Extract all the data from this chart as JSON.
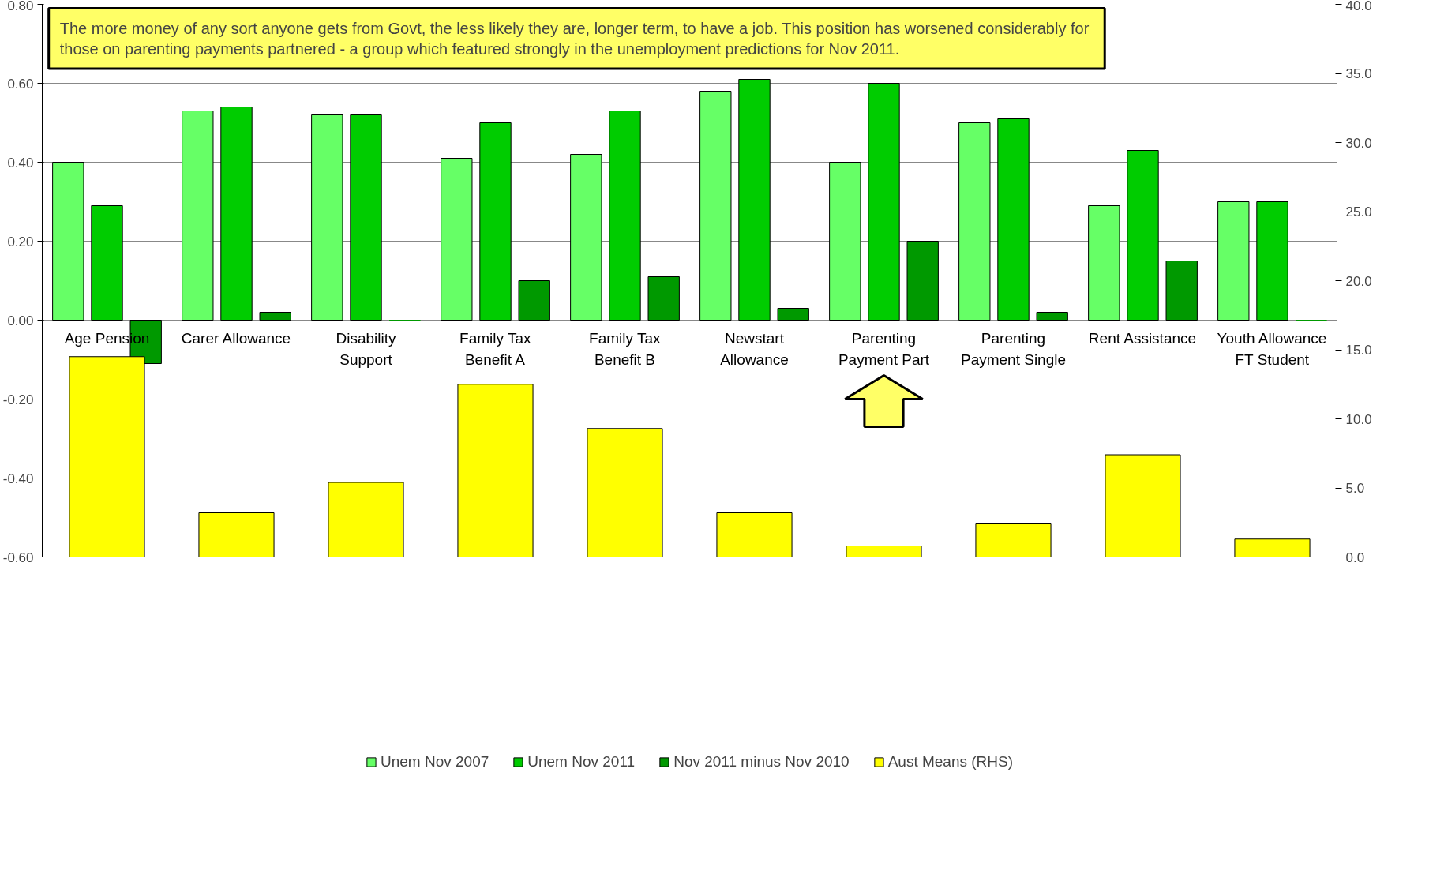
{
  "chart_data": {
    "type": "bar",
    "categories": [
      "Age Pension",
      "Carer Allowance",
      "Disability Support",
      "Family Tax Benefit A",
      "Family Tax Benefit B",
      "Newstart Allowance",
      "Parenting Payment Part",
      "Parenting Payment Single",
      "Rent Assistance",
      "Youth Allowance FT Student"
    ],
    "series": [
      {
        "name": "Unem Nov 2007",
        "color": "#66ff66",
        "values": [
          0.4,
          0.53,
          0.52,
          0.41,
          0.42,
          0.58,
          0.4,
          0.5,
          0.29,
          0.3
        ]
      },
      {
        "name": "Unem Nov 2011",
        "color": "#00cc00",
        "values": [
          0.29,
          0.54,
          0.52,
          0.5,
          0.53,
          0.61,
          0.6,
          0.51,
          0.43,
          0.3
        ]
      },
      {
        "name": "Nov 2011 minus Nov 2010",
        "color": "#009900",
        "values": [
          -0.11,
          0.02,
          0.0,
          0.1,
          0.11,
          0.03,
          0.2,
          0.02,
          0.15,
          0.0
        ]
      },
      {
        "name": "Aust Means (RHS)",
        "color": "#ffff00",
        "axis": "y2",
        "values": [
          14.5,
          3.2,
          5.4,
          12.5,
          9.3,
          3.2,
          0.8,
          2.4,
          7.4,
          1.3
        ]
      }
    ],
    "ylim": [
      -0.6,
      0.8
    ],
    "yticks": [
      {
        "value": -0.6,
        "label": "-0.60"
      },
      {
        "value": -0.4,
        "label": "-0.40"
      },
      {
        "value": -0.2,
        "label": "-0.20"
      },
      {
        "value": 0,
        "label": "0.00"
      },
      {
        "value": 0.2,
        "label": "0.20"
      },
      {
        "value": 0.4,
        "label": "0.40"
      },
      {
        "value": 0.6,
        "label": "0.60"
      },
      {
        "value": 0.8,
        "label": "0.80"
      }
    ],
    "y2lim": [
      0,
      40
    ],
    "y2ticks": [
      {
        "value": 0,
        "label": "0.0"
      },
      {
        "value": 5,
        "label": "5.0"
      },
      {
        "value": 10,
        "label": "10.0"
      },
      {
        "value": 15,
        "label": "15.0"
      },
      {
        "value": 20,
        "label": "20.0"
      },
      {
        "value": 25,
        "label": "25.0"
      },
      {
        "value": 30,
        "label": "30.0"
      },
      {
        "value": 35,
        "label": "35.0"
      },
      {
        "value": 40,
        "label": "40.0"
      }
    ],
    "grid": "y",
    "legend": "bottom",
    "annotations": [
      "The more money of any sort anyone gets from Govt, the less likely they are, longer term, to have a job. This position  has worsened considerably for those on parenting payments partnered - a group which featured strongly in the unemployment predictions for Nov 2011."
    ]
  }
}
